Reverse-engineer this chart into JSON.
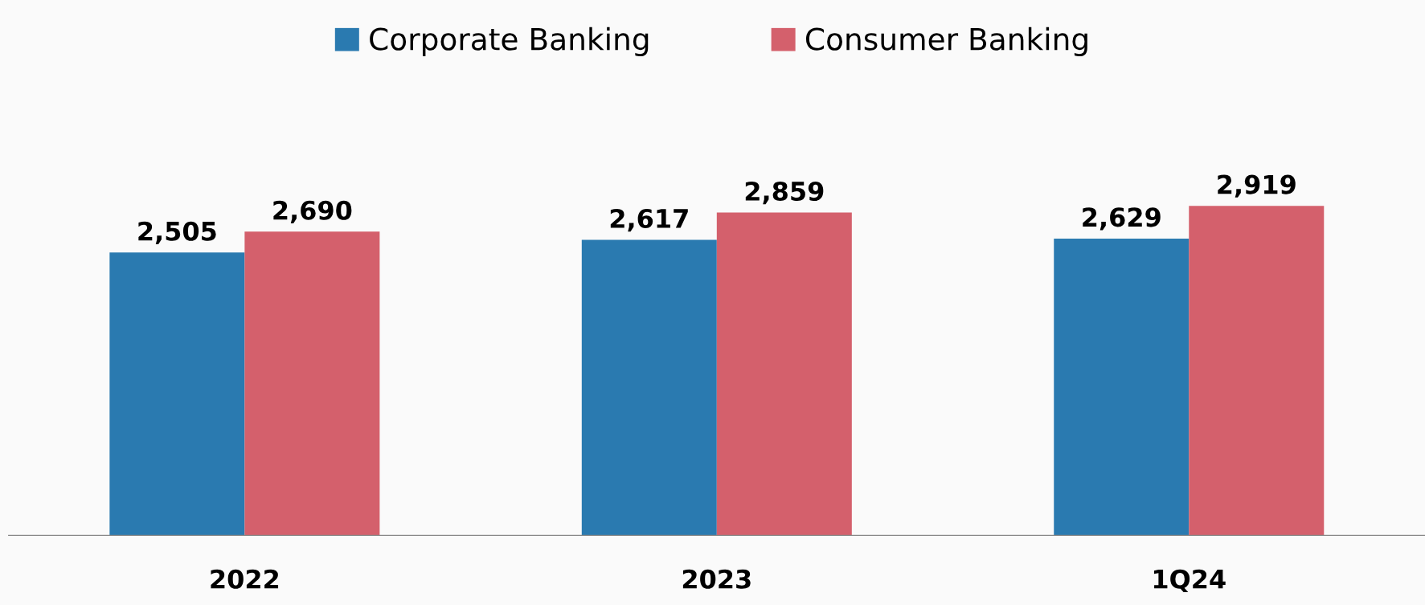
{
  "chart_data": {
    "type": "bar",
    "categories": [
      "2022",
      "2023",
      "1Q24"
    ],
    "series": [
      {
        "name": "Corporate Banking",
        "color": "#2a7ab0",
        "values": [
          2505,
          2617,
          2629
        ],
        "value_labels": [
          "2,505",
          "2,617",
          "2,629"
        ]
      },
      {
        "name": "Consumer Banking",
        "color": "#d4606c",
        "values": [
          2690,
          2859,
          2919
        ],
        "value_labels": [
          "2,690",
          "2,859",
          "2,919"
        ]
      }
    ],
    "legend": "top",
    "grid": false
  }
}
